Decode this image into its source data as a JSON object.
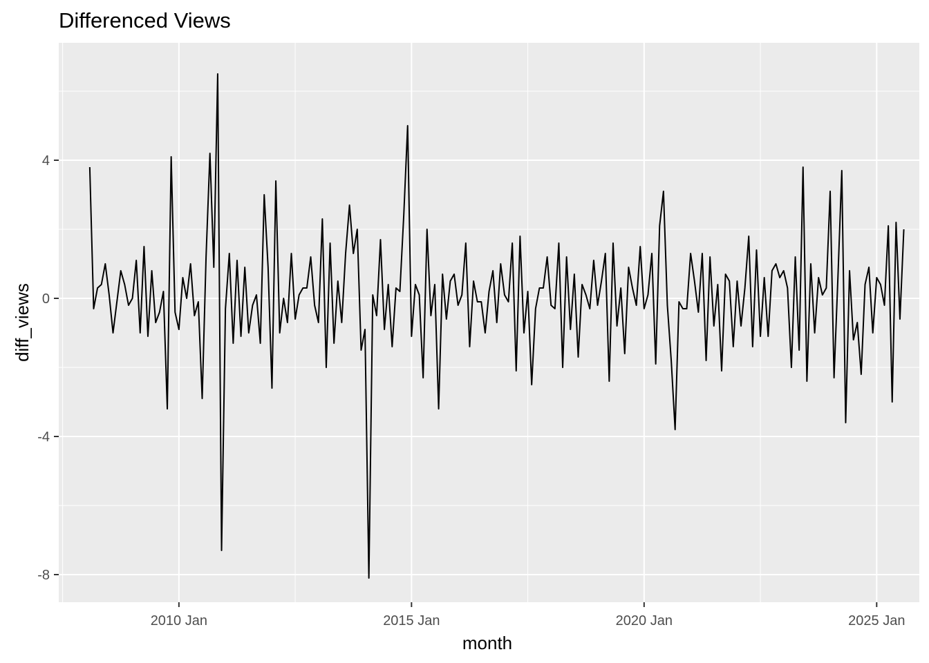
{
  "chart_data": {
    "type": "line",
    "title": "Differenced Views",
    "xlabel": "month",
    "ylabel": "diff_views",
    "x_start": "2008-02",
    "x_end": "2025-05",
    "x_step": "month",
    "xlim": [
      "2007-06",
      "2025-12"
    ],
    "ylim": [
      -8.8,
      7.4
    ],
    "x_ticks": [
      {
        "label": "2010 Jan",
        "value": "2010-01"
      },
      {
        "label": "2015 Jan",
        "value": "2015-01"
      },
      {
        "label": "2020 Jan",
        "value": "2020-01"
      },
      {
        "label": "2025 Jan",
        "value": "2025-01"
      }
    ],
    "y_ticks": [
      {
        "label": "-8",
        "value": -8
      },
      {
        "label": "-4",
        "value": -4
      },
      {
        "label": "0",
        "value": 0
      },
      {
        "label": "4",
        "value": 4
      }
    ],
    "grid": true,
    "legend": "none",
    "colors": {
      "panel": "#ebebeb",
      "grid_major": "#ffffff",
      "line": "#000000",
      "tick_text": "#4d4d4d",
      "tick_mark": "#333333"
    },
    "series": [
      {
        "values": [
          3.8,
          -0.3,
          0.3,
          0.4,
          1.0,
          0.1,
          -1.0,
          -0.1,
          0.8,
          0.4,
          -0.2,
          0.0,
          1.1,
          -1.0,
          1.5,
          -1.1,
          0.8,
          -0.7,
          -0.4,
          0.2,
          -3.2,
          4.1,
          -0.4,
          -0.9,
          0.6,
          0.0,
          1.0,
          -0.5,
          -0.1,
          -2.9,
          1.2,
          4.2,
          0.9,
          6.5,
          -7.3,
          -0.3,
          1.3,
          -1.3,
          1.1,
          -1.1,
          0.9,
          -1.0,
          -0.2,
          0.1,
          -1.3,
          3.0,
          0.9,
          -2.6,
          3.4,
          -1.0,
          0.0,
          -0.7,
          1.3,
          -0.6,
          0.1,
          0.3,
          0.3,
          1.2,
          -0.2,
          -0.7,
          2.3,
          -2.0,
          1.6,
          -1.3,
          0.5,
          -0.7,
          1.3,
          2.7,
          1.3,
          2.0,
          -1.5,
          -0.9,
          -8.1,
          0.1,
          -0.5,
          1.7,
          -0.9,
          0.4,
          -1.4,
          0.3,
          0.2,
          2.4,
          5.0,
          -1.1,
          0.4,
          0.1,
          -2.3,
          2.0,
          -0.5,
          0.4,
          -3.2,
          0.7,
          -0.6,
          0.5,
          0.7,
          -0.2,
          0.1,
          1.6,
          -1.4,
          0.5,
          -0.1,
          -0.1,
          -1.0,
          0.2,
          0.8,
          -0.7,
          1.0,
          0.1,
          -0.1,
          1.6,
          -2.1,
          1.8,
          -1.0,
          0.2,
          -2.5,
          -0.3,
          0.3,
          0.3,
          1.2,
          -0.2,
          -0.3,
          1.6,
          -2.0,
          1.2,
          -0.9,
          0.7,
          -1.7,
          0.4,
          0.1,
          -0.3,
          1.1,
          -0.2,
          0.5,
          1.3,
          -2.4,
          1.6,
          -0.8,
          0.3,
          -1.6,
          0.9,
          0.3,
          -0.2,
          1.5,
          -0.3,
          0.1,
          1.3,
          -1.9,
          2.1,
          3.1,
          -0.2,
          -1.8,
          -3.8,
          -0.1,
          -0.3,
          -0.3,
          1.3,
          0.5,
          -0.4,
          1.3,
          -1.8,
          1.2,
          -0.8,
          0.4,
          -2.1,
          0.7,
          0.5,
          -1.4,
          0.5,
          -0.8,
          0.3,
          1.8,
          -1.4,
          1.4,
          -1.1,
          0.6,
          -1.1,
          0.8,
          1.0,
          0.6,
          0.8,
          0.3,
          -2.0,
          1.2,
          -1.5,
          3.8,
          -2.4,
          1.0,
          -1.0,
          0.6,
          0.1,
          0.3,
          3.1,
          -2.3,
          0.6,
          3.7,
          -3.6,
          0.8,
          -1.2,
          -0.7,
          -2.2,
          0.4,
          0.9,
          -1.0,
          0.6,
          0.4,
          -0.2,
          2.1,
          -3.0,
          2.2,
          -0.6,
          2.0
        ]
      }
    ]
  }
}
